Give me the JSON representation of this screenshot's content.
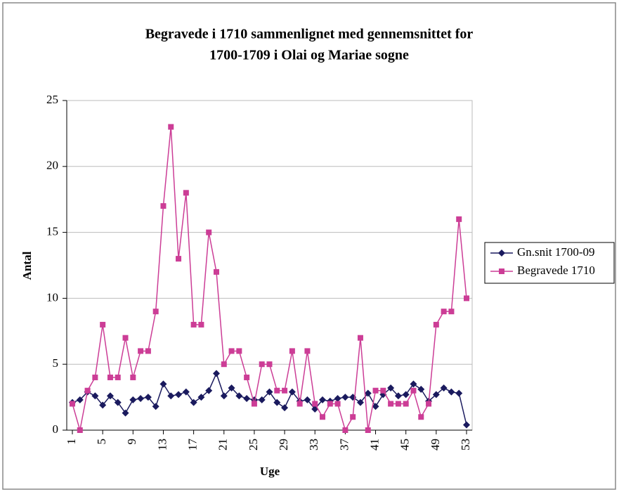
{
  "chart_data": {
    "type": "line",
    "title": [
      "Begravede i 1710 sammenlignet med gennemsnittet for",
      "1700-1709 i Olai og Mariae sogne"
    ],
    "x_label": "Uge",
    "y_label": "Antal",
    "x": [
      1,
      2,
      3,
      4,
      5,
      6,
      7,
      8,
      9,
      10,
      11,
      12,
      13,
      14,
      15,
      16,
      17,
      18,
      19,
      20,
      21,
      22,
      23,
      24,
      25,
      26,
      27,
      28,
      29,
      30,
      31,
      32,
      33,
      34,
      35,
      36,
      37,
      38,
      39,
      40,
      41,
      42,
      43,
      44,
      45,
      46,
      47,
      48,
      49,
      50,
      51,
      52,
      53
    ],
    "xlim": [
      1,
      53
    ],
    "xticks": [
      1,
      5,
      9,
      13,
      17,
      21,
      25,
      29,
      33,
      37,
      41,
      45,
      49,
      53
    ],
    "ylim": [
      0,
      25
    ],
    "yticks": [
      0,
      5,
      10,
      15,
      20,
      25
    ],
    "grid": true,
    "legend": "right",
    "series": [
      {
        "name": "Gn.snit 1700-09",
        "color": "#1a1a5e",
        "marker": "diamond",
        "values": [
          2.1,
          2.3,
          2.9,
          2.6,
          1.9,
          2.6,
          2.1,
          1.3,
          2.3,
          2.4,
          2.5,
          1.8,
          3.5,
          2.6,
          2.7,
          2.9,
          2.1,
          2.5,
          3,
          4.3,
          2.6,
          3.2,
          2.6,
          2.4,
          2.3,
          2.3,
          2.9,
          2.1,
          1.7,
          2.9,
          2.2,
          2.3,
          1.6,
          2.3,
          2.2,
          2.4,
          2.5,
          2.5,
          2.1,
          2.8,
          1.8,
          2.7,
          3.2,
          2.6,
          2.7,
          3.5,
          3.1,
          2.2,
          2.7,
          3.2,
          2.9,
          2.8,
          0.4
        ]
      },
      {
        "name": "Begravede 1710",
        "color": "#cc3d96",
        "marker": "square",
        "values": [
          2,
          0,
          3,
          4,
          8,
          4,
          4,
          7,
          4,
          6,
          6,
          9,
          17,
          23,
          13,
          18,
          8,
          8,
          15,
          12,
          5,
          6,
          6,
          4,
          2,
          5,
          5,
          3,
          3,
          6,
          2,
          6,
          2,
          1,
          2,
          2,
          0,
          1,
          7,
          0,
          3,
          3,
          2,
          2,
          2,
          3,
          1,
          2,
          8,
          9,
          9,
          16,
          10
        ]
      }
    ]
  }
}
